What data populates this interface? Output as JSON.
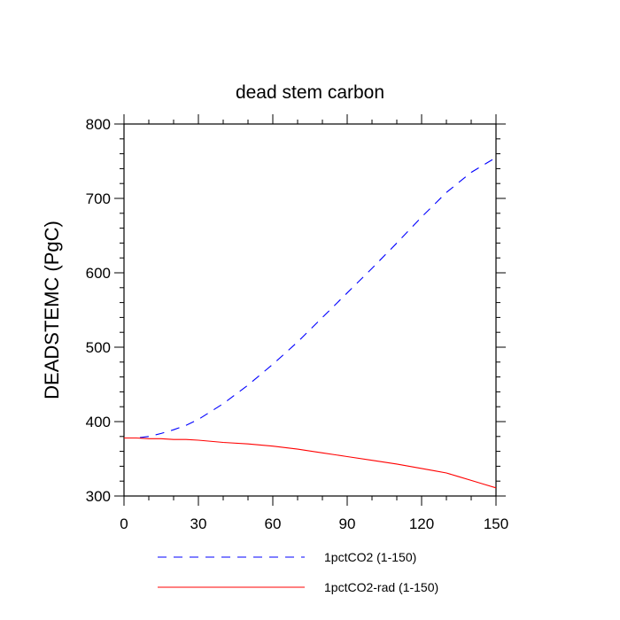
{
  "chart_data": {
    "type": "line",
    "title": "dead stem carbon",
    "xlabel": "",
    "ylabel": "DEADSTEMC  (PgC)",
    "xlim": [
      0,
      150
    ],
    "ylim": [
      300,
      800
    ],
    "x_ticks": [
      0,
      30,
      60,
      90,
      120,
      150
    ],
    "y_ticks": [
      300,
      400,
      500,
      600,
      700,
      800
    ],
    "grid": false,
    "legend_position": "bottom",
    "series": [
      {
        "name": "1pctCO2 (1-150)",
        "color": "#0000ff",
        "style": "dashed",
        "x": [
          0,
          5,
          10,
          15,
          20,
          25,
          30,
          40,
          50,
          60,
          70,
          80,
          90,
          100,
          110,
          120,
          130,
          140,
          150
        ],
        "y": [
          378,
          378,
          380,
          384,
          389,
          395,
          403,
          424,
          449,
          477,
          507,
          540,
          573,
          606,
          640,
          675,
          708,
          735,
          755
        ]
      },
      {
        "name": "1pctCO2-rad (1-150)",
        "color": "#ff0000",
        "style": "solid",
        "x": [
          0,
          5,
          10,
          15,
          20,
          25,
          30,
          40,
          50,
          60,
          70,
          80,
          90,
          100,
          110,
          120,
          125,
          130,
          135,
          140,
          145,
          150
        ],
        "y": [
          378,
          378,
          377,
          377,
          376,
          376,
          375,
          372,
          370,
          367,
          363,
          358,
          353,
          348,
          343,
          337,
          334,
          331,
          326,
          321,
          316,
          311
        ]
      }
    ]
  }
}
